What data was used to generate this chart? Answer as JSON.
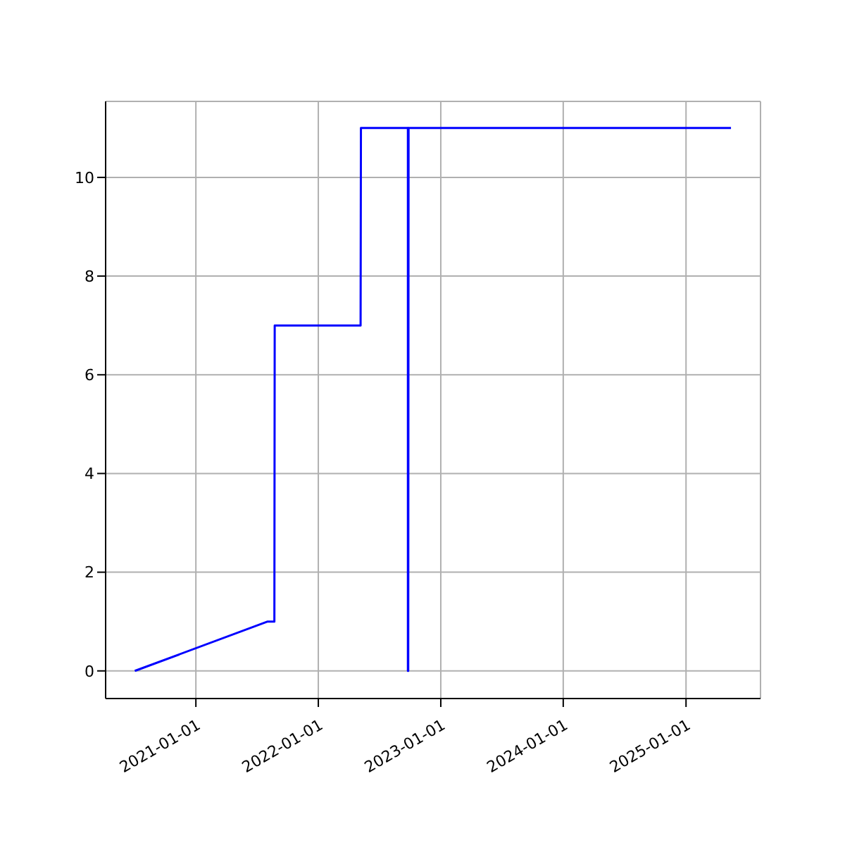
{
  "chart_data": {
    "type": "line",
    "x": [
      "2020-07-03",
      "2021-08-03",
      "2021-08-23",
      "2021-08-24",
      "2022-05-07",
      "2022-05-08",
      "2022-09-25",
      "2022-09-25",
      "2022-09-26",
      "2022-09-26",
      "2022-09-27",
      "2025-05-15"
    ],
    "series": [
      {
        "color": "#0000ff",
        "values": [
          0,
          1,
          1,
          7,
          7,
          11,
          11,
          0,
          11,
          0,
          11,
          11
        ]
      }
    ],
    "xlim": [
      "2020-04-07",
      "2025-08-11"
    ],
    "xticks": [
      "2021-01-01",
      "2022-01-01",
      "2023-01-01",
      "2024-01-01",
      "2025-01-01"
    ],
    "ylim": [
      -0.56,
      11.54
    ],
    "yticks": [
      0,
      2,
      4,
      6,
      8,
      10
    ],
    "grid": true,
    "marker": "none",
    "line_style": "solid",
    "legend": false
  }
}
